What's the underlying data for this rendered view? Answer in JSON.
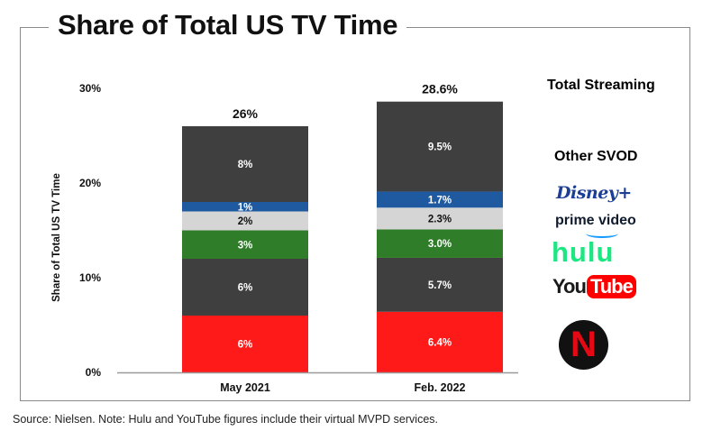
{
  "title": "Share of Total US TV Time",
  "source_note": "Source: Nielsen. Note: Hulu and YouTube figures include their virtual MVPD services.",
  "legend": {
    "total_streaming": "Total Streaming",
    "other_svod": "Other SVOD",
    "logos": [
      {
        "icon": "disney-plus-logo",
        "text": "Disney+",
        "color": "#1c3f95"
      },
      {
        "icon": "prime-video-logo",
        "text": "prime video",
        "color": "#1399ff"
      },
      {
        "icon": "hulu-logo",
        "text": "hulu",
        "color": "#1ce783"
      },
      {
        "icon": "youtube-logo",
        "text": "You",
        "text2": "Tube",
        "color": "#ff0000"
      },
      {
        "icon": "netflix-logo",
        "text": "N",
        "color": "#e50914"
      }
    ]
  },
  "chart_data": {
    "type": "bar",
    "stacked": true,
    "title": "Share of Total US TV Time",
    "ylabel": "Share of Total US TV Time",
    "xlabel": "",
    "ylim": [
      0,
      30
    ],
    "yticks": [
      "0%",
      "10%",
      "20%",
      "30%"
    ],
    "categories": [
      "May 2021",
      "Feb. 2022"
    ],
    "totals": [
      26,
      28.6
    ],
    "total_labels": [
      "26%",
      "28.6%"
    ],
    "series": [
      {
        "name": "Netflix",
        "color": "#ff1a1a",
        "label_color": "#ffffff",
        "values": [
          6,
          6.4
        ],
        "labels": [
          "6%",
          "6.4%"
        ]
      },
      {
        "name": "YouTube",
        "color": "#3f3f3f",
        "label_color": "#ffffff",
        "values": [
          6,
          5.7
        ],
        "labels": [
          "6%",
          "5.7%"
        ]
      },
      {
        "name": "Hulu",
        "color": "#2f7d28",
        "label_color": "#ffffff",
        "values": [
          3,
          3.0
        ],
        "labels": [
          "3%",
          "3.0%"
        ]
      },
      {
        "name": "Prime Video",
        "color": "#d5d5d5",
        "label_color": "#111111",
        "values": [
          2,
          2.3
        ],
        "labels": [
          "2%",
          "2.3%"
        ]
      },
      {
        "name": "Disney+",
        "color": "#1f5aa0",
        "label_color": "#ffffff",
        "values": [
          1,
          1.7
        ],
        "labels": [
          "1%",
          "1.7%"
        ]
      },
      {
        "name": "Other SVOD",
        "color": "#3f3f3f",
        "label_color": "#ffffff",
        "values": [
          8,
          9.5
        ],
        "labels": [
          "8%",
          "9.5%"
        ]
      }
    ],
    "grid": false
  }
}
